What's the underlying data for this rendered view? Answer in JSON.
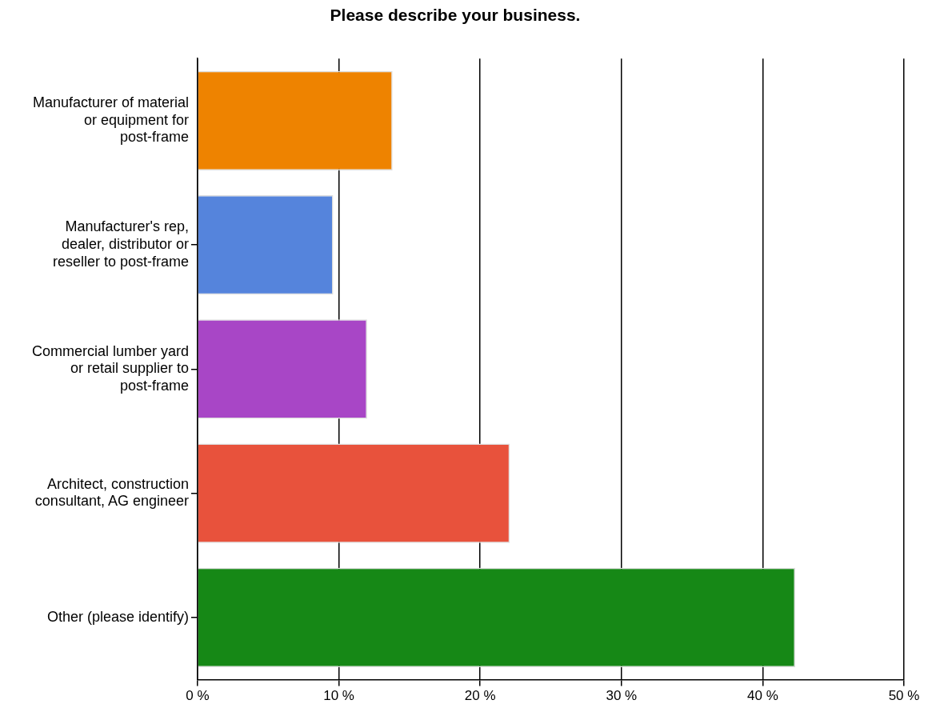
{
  "chart_data": {
    "type": "bar",
    "orientation": "horizontal",
    "title": "Please describe your business.",
    "categories": [
      "Manufacturer of material or equipment for post-frame",
      "Manufacturer's rep, dealer, distributor or reseller to post-frame",
      "Commercial lumber yard or retail supplier to post-frame",
      "Architect, construction consultant, AG engineer",
      "Other (please identify)"
    ],
    "values": [
      13.8,
      9.6,
      12.0,
      22.1,
      42.3
    ],
    "colors": [
      "#ee8300",
      "#5584dc",
      "#a846c6",
      "#e8523c",
      "#168816"
    ],
    "xlim": [
      0,
      50
    ],
    "xticks": [
      {
        "value": 0,
        "label": "0 %"
      },
      {
        "value": 10,
        "label": "10 %"
      },
      {
        "value": 20,
        "label": "20 %"
      },
      {
        "value": 30,
        "label": "30 %"
      },
      {
        "value": 40,
        "label": "40 %"
      },
      {
        "value": 50,
        "label": "50 %"
      }
    ],
    "grid": "x",
    "legend": false
  }
}
